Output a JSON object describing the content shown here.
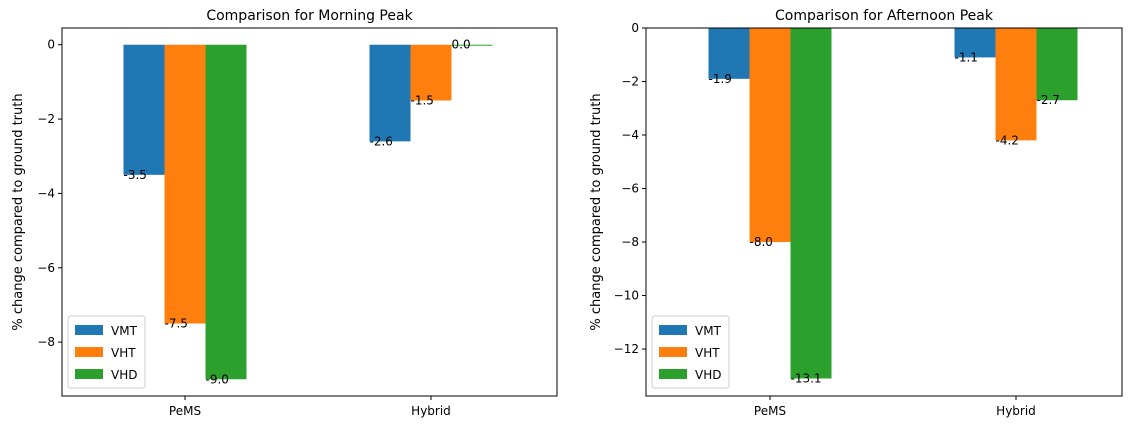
{
  "chart_data": [
    {
      "type": "bar",
      "title": "Comparison for Morning Peak",
      "xlabel": "",
      "ylabel": "% change compared to ground truth",
      "categories": [
        "PeMS",
        "Hybrid"
      ],
      "series": [
        {
          "name": "VMT",
          "color": "#1f77b4",
          "values": [
            -3.5,
            -2.6
          ]
        },
        {
          "name": "VHT",
          "color": "#ff7f0e",
          "values": [
            -7.5,
            -1.5
          ]
        },
        {
          "name": "VHD",
          "color": "#2ca02c",
          "values": [
            -9.0,
            0.0
          ]
        }
      ],
      "ylim": [
        -9.45,
        0.45
      ],
      "yticks": [
        0,
        -2,
        -4,
        -6,
        -8
      ],
      "ytick_labels": [
        "0",
        "−2",
        "−4",
        "−6",
        "−8"
      ],
      "value_labels": [
        [
          "-3.5",
          "-2.6"
        ],
        [
          "-7.5",
          "-1.5"
        ],
        [
          "-9.0",
          "0.0"
        ]
      ],
      "legend": "lower-left",
      "grid": false
    },
    {
      "type": "bar",
      "title": "Comparison for Afternoon Peak",
      "xlabel": "",
      "ylabel": "% change compared to ground truth",
      "categories": [
        "PeMS",
        "Hybrid"
      ],
      "series": [
        {
          "name": "VMT",
          "color": "#1f77b4",
          "values": [
            -1.9,
            -1.1
          ]
        },
        {
          "name": "VHT",
          "color": "#ff7f0e",
          "values": [
            -8.0,
            -4.2
          ]
        },
        {
          "name": "VHD",
          "color": "#2ca02c",
          "values": [
            -13.1,
            -2.7
          ]
        }
      ],
      "ylim": [
        -13.755,
        0.0
      ],
      "yticks": [
        0,
        -2,
        -4,
        -6,
        -8,
        -10,
        -12
      ],
      "ytick_labels": [
        "0",
        "−2",
        "−4",
        "−6",
        "−8",
        "−10",
        "−12"
      ],
      "value_labels": [
        [
          "-1.9",
          "-1.1"
        ],
        [
          "-8.0",
          "-4.2"
        ],
        [
          "-13.1",
          "-2.7"
        ]
      ],
      "legend": "lower-left",
      "grid": false
    }
  ]
}
